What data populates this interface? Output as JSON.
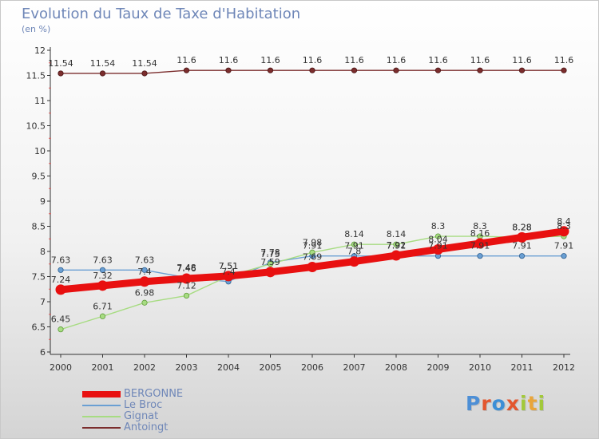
{
  "header": {
    "title": "Evolution du Taux de Taxe d'Habitation",
    "unit": "(en %)"
  },
  "chart_data": {
    "type": "line",
    "x": [
      "2000",
      "2001",
      "2002",
      "2003",
      "2004",
      "2005",
      "2006",
      "2007",
      "2008",
      "2009",
      "2010",
      "2011",
      "2012"
    ],
    "ylim": [
      6,
      12
    ],
    "yticks": [
      "6",
      "6.5",
      "7",
      "7.5",
      "8",
      "8.5",
      "9",
      "9.5",
      "10",
      "10.5",
      "11",
      "11.5",
      "12"
    ],
    "grid": false,
    "legend_position": "bottom-left",
    "series": [
      {
        "name": "Antoingt",
        "color": "#7b2d2d",
        "values": [
          11.54,
          11.54,
          11.54,
          11.6,
          11.6,
          11.6,
          11.6,
          11.6,
          11.6,
          11.6,
          11.6,
          11.6,
          11.6
        ]
      },
      {
        "name": "Le Broc",
        "color": "#6a9fd3",
        "values": [
          7.63,
          7.63,
          7.63,
          7.48,
          7.4,
          7.78,
          7.91,
          7.91,
          7.91,
          7.91,
          7.91,
          7.91,
          7.91
        ]
      },
      {
        "name": "Gignat",
        "color": "#a7dc82",
        "values": [
          6.45,
          6.71,
          6.98,
          7.12,
          7.51,
          7.75,
          7.98,
          8.14,
          8.14,
          8.3,
          8.3,
          8.28,
          8.3
        ]
      },
      {
        "name": "BERGONNE",
        "color": "#e81010",
        "values": [
          7.24,
          7.32,
          7.4,
          7.46,
          7.51,
          7.59,
          7.69,
          7.8,
          7.92,
          8.04,
          8.16,
          8.28,
          8.4
        ]
      }
    ]
  },
  "logo": {
    "letters": [
      "P",
      "r",
      "o",
      "x",
      "i",
      "t",
      "i"
    ],
    "colors": [
      "#4d8fd6",
      "#e3562e",
      "#3d8fd6",
      "#e3562e",
      "#a2c93a",
      "#e9a53a",
      "#a2c93a"
    ]
  }
}
